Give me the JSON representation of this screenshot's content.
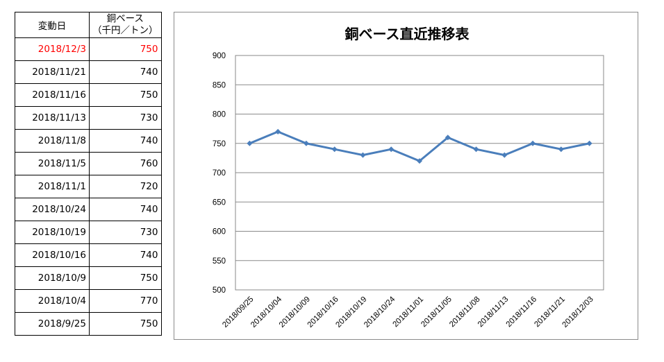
{
  "table": {
    "header_date": "変動日",
    "header_price_line1": "銅ベース",
    "header_price_line2": "（千円／トン）",
    "rows": [
      {
        "date": "2018/12/3",
        "price": "750",
        "highlight": true
      },
      {
        "date": "2018/11/21",
        "price": "740"
      },
      {
        "date": "2018/11/16",
        "price": "750"
      },
      {
        "date": "2018/11/13",
        "price": "730"
      },
      {
        "date": "2018/11/8",
        "price": "740"
      },
      {
        "date": "2018/11/5",
        "price": "760"
      },
      {
        "date": "2018/11/1",
        "price": "720"
      },
      {
        "date": "2018/10/24",
        "price": "740"
      },
      {
        "date": "2018/10/19",
        "price": "730"
      },
      {
        "date": "2018/10/16",
        "price": "740"
      },
      {
        "date": "2018/10/9",
        "price": "750"
      },
      {
        "date": "2018/10/4",
        "price": "770"
      },
      {
        "date": "2018/9/25",
        "price": "750"
      }
    ],
    "highlight_color": "#ff0000"
  },
  "chart_data": {
    "type": "line",
    "title": "銅ベース直近推移表",
    "xlabel": "",
    "ylabel": "",
    "categories": [
      "2018/09/25",
      "2018/10/04",
      "2018/10/09",
      "2018/10/16",
      "2018/10/19",
      "2018/10/24",
      "2018/11/01",
      "2018/11/05",
      "2018/11/08",
      "2018/11/13",
      "2018/11/16",
      "2018/11/21",
      "2018/12/03"
    ],
    "series": [
      {
        "values": [
          750,
          770,
          750,
          740,
          730,
          740,
          720,
          760,
          740,
          730,
          750,
          740,
          750
        ]
      }
    ],
    "ylim": [
      500,
      900
    ],
    "yticks": [
      500,
      550,
      600,
      650,
      700,
      750,
      800,
      850,
      900
    ],
    "grid": true,
    "legend": "none",
    "line_color": "#4a7ebb"
  }
}
